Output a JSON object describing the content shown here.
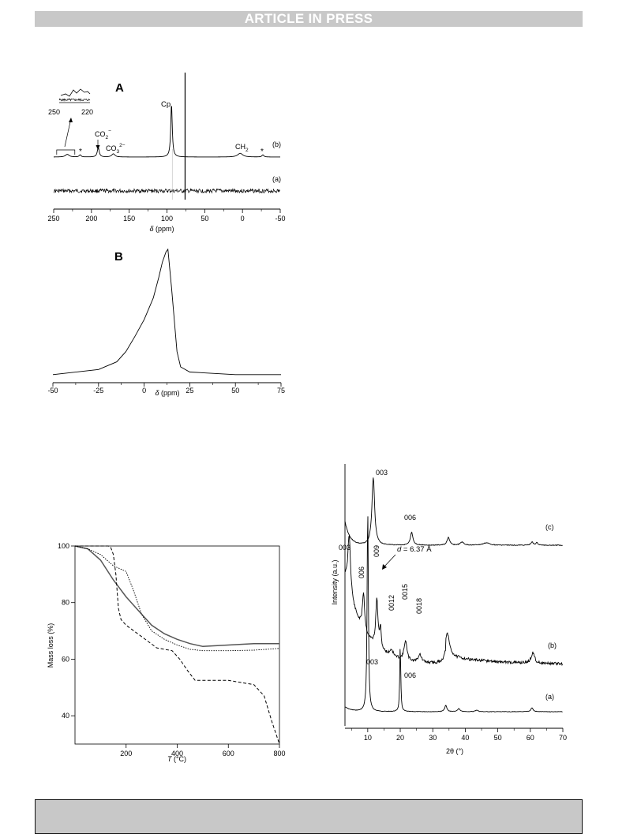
{
  "header": {
    "banner_text": "ARTICLE IN PRESS"
  },
  "figures": {
    "nmr_13c": {
      "panel_label": "A",
      "xlabel_sym": "δ",
      "xlabel_rest": " (ppm)",
      "x_ticks": [
        "250",
        "200",
        "150",
        "100",
        "50",
        "0",
        "-50"
      ],
      "inset_ticks": [
        "250",
        "220"
      ],
      "trace_labels": [
        "(b)",
        "(a)"
      ],
      "peak_labels": {
        "cp": "Cp",
        "co2": "CO",
        "co2_sub": "2",
        "co2_sup": "−",
        "co3": "CO",
        "co3_sub": "3",
        "co3_sup": "2−",
        "ch2": "CH",
        "ch2_sub": "2",
        "star": "*"
      }
    },
    "nmr_b": {
      "panel_label": "B",
      "xlabel_sym": "δ",
      "xlabel_rest": " (ppm)",
      "x_ticks": [
        "-50",
        "-25",
        "0",
        "25",
        "50",
        "75"
      ]
    },
    "tga": {
      "ylabel": "Mass loss (%)",
      "xlabel_sym": "T",
      "xlabel_rest": " (°C)",
      "x_ticks": [
        "200",
        "400",
        "600",
        "800"
      ],
      "y_ticks": [
        "40",
        "60",
        "80",
        "100"
      ]
    },
    "xrd": {
      "ylabel": "Intensity (a.u.)",
      "xlabel": "2θ (°)",
      "x_ticks": [
        "10",
        "20",
        "30",
        "40",
        "50",
        "60",
        "70"
      ],
      "trace_labels": [
        "(c)",
        "(b)",
        "(a)"
      ],
      "peaks_c": [
        "003",
        "006"
      ],
      "peaks_b": [
        "003",
        "006",
        "009",
        "0012",
        "0015",
        "0018"
      ],
      "peaks_a": [
        "003",
        "006"
      ],
      "d_label_sym": "d",
      "d_label_rest": " = 6.37 Å"
    }
  },
  "chart_data": [
    {
      "type": "line",
      "title": "A",
      "xlabel": "δ (ppm)",
      "xlim": [
        250,
        -50
      ],
      "series": [
        {
          "name": "(b)",
          "peaks_ppm": [
            {
              "x": 232,
              "y": 0.05
            },
            {
              "x": 215,
              "y": 0.04
            },
            {
              "x": 191,
              "y": 0.18
            },
            {
              "x": 171,
              "y": 0.06
            },
            {
              "x": 94,
              "y": 1.0
            },
            {
              "x": 3,
              "y": 0.07
            },
            {
              "x": -27,
              "y": 0.04
            }
          ]
        },
        {
          "name": "(a)",
          "peaks_ppm": []
        }
      ]
    },
    {
      "type": "line",
      "title": "B",
      "xlabel": "δ (ppm)",
      "xlim": [
        -50,
        75
      ],
      "x": [
        -50,
        -25,
        -15,
        -10,
        -5,
        0,
        5,
        8,
        10,
        12,
        13,
        15,
        18,
        20,
        25,
        50,
        75
      ],
      "y": [
        0.02,
        0.06,
        0.12,
        0.2,
        0.32,
        0.45,
        0.62,
        0.78,
        0.9,
        0.98,
        1.0,
        0.7,
        0.2,
        0.08,
        0.04,
        0.02,
        0.02
      ]
    },
    {
      "type": "line",
      "xlabel": "T (°C)",
      "ylabel": "Mass loss (%)",
      "xlim": [
        0,
        800
      ],
      "ylim": [
        30,
        100
      ],
      "series": [
        {
          "style": "solid",
          "x": [
            0,
            50,
            100,
            150,
            200,
            250,
            300,
            350,
            400,
            450,
            500,
            600,
            700,
            800
          ],
          "y": [
            100,
            99,
            95,
            88,
            82,
            77,
            72,
            69,
            67,
            65.5,
            64.5,
            65,
            65.5,
            65.5
          ]
        },
        {
          "style": "dotted",
          "x": [
            0,
            50,
            100,
            150,
            200,
            230,
            260,
            300,
            350,
            400,
            450,
            500,
            600,
            700,
            800
          ],
          "y": [
            100,
            99,
            97,
            93,
            91,
            84,
            76,
            70,
            67,
            65,
            63.5,
            63,
            63,
            63.2,
            63.8
          ]
        },
        {
          "style": "dashed",
          "x": [
            0,
            130,
            140,
            150,
            160,
            170,
            180,
            200,
            260,
            320,
            380,
            410,
            440,
            470,
            500,
            600,
            700,
            740,
            770,
            800
          ],
          "y": [
            100,
            100,
            99.5,
            97,
            90,
            78,
            74,
            72,
            68,
            64,
            63,
            60,
            56,
            52.5,
            52.5,
            52.5,
            51,
            47,
            38,
            30
          ]
        }
      ]
    },
    {
      "type": "line",
      "xlabel": "2θ (°)",
      "ylabel": "Intensity (a.u.)",
      "xlim": [
        3,
        70
      ],
      "series": [
        {
          "name": "(c)",
          "peaks_2theta": [
            {
              "x": 11.7,
              "label": "003"
            },
            {
              "x": 23.5,
              "label": "006"
            },
            {
              "x": 34.8,
              "label": ""
            },
            {
              "x": 60.5,
              "label": ""
            }
          ]
        },
        {
          "name": "(b)",
          "peaks_2theta": [
            {
              "x": 4.3,
              "label": "003"
            },
            {
              "x": 8.7,
              "label": "006"
            },
            {
              "x": 12.8,
              "label": "009"
            },
            {
              "x": 17.3,
              "label": "0012"
            },
            {
              "x": 21.6,
              "label": "0015"
            },
            {
              "x": 26.0,
              "label": "0018"
            },
            {
              "x": 34.5,
              "label": ""
            },
            {
              "x": 60.8,
              "label": ""
            }
          ]
        },
        {
          "name": "(a)",
          "peaks_2theta": [
            {
              "x": 10.0,
              "label": "003"
            },
            {
              "x": 20.0,
              "label": "006"
            },
            {
              "x": 34.0,
              "label": ""
            },
            {
              "x": 60.5,
              "label": ""
            }
          ]
        }
      ],
      "annotation": "d = 6.37 Å"
    }
  ]
}
